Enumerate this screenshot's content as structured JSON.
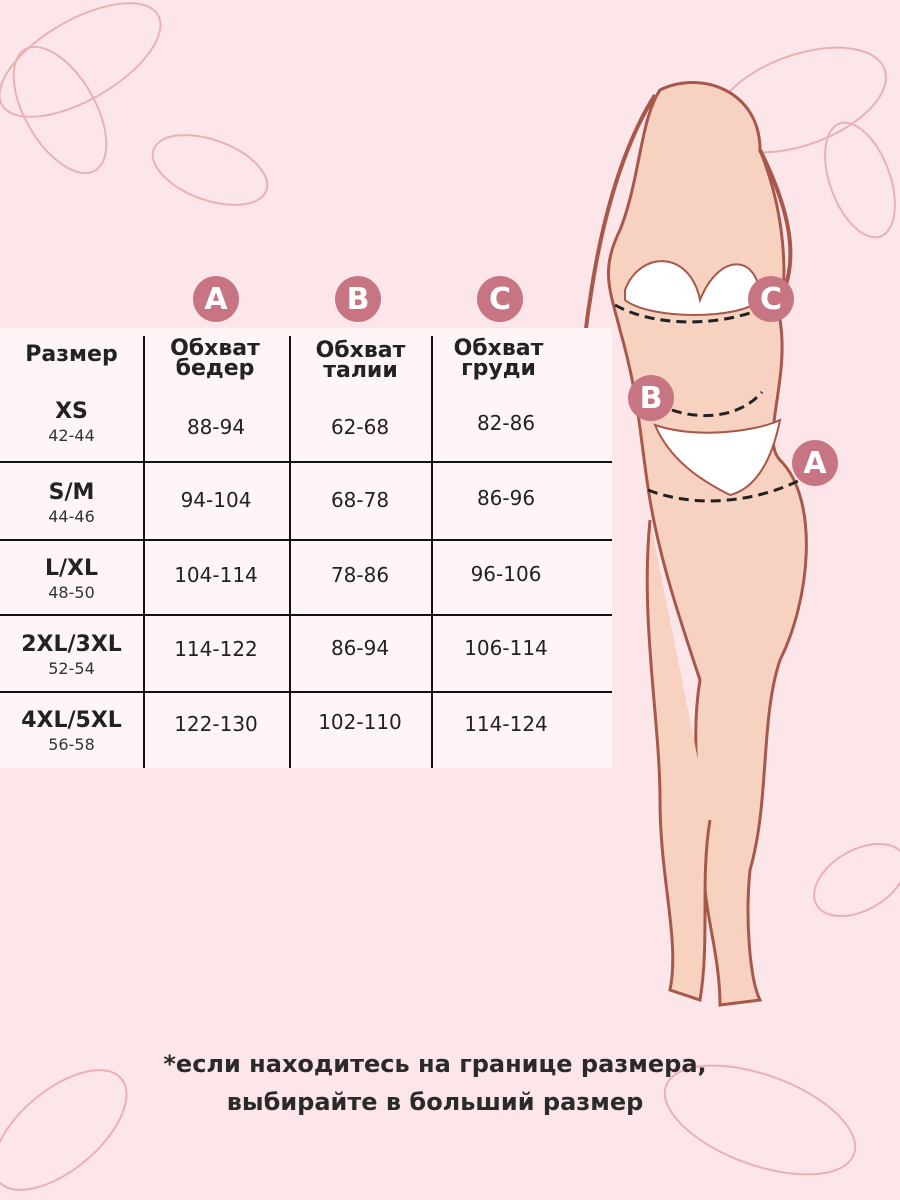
{
  "colors": {
    "background": "#fce6ea",
    "badge": "#c87583",
    "table": "#fff5f7"
  },
  "badges": {
    "a": "A",
    "b": "B",
    "c": "C"
  },
  "headers": {
    "size": "Размер",
    "hips": "Обхват бедер",
    "waist": "Обхват талии",
    "chest": "Обхват груди"
  },
  "rows": [
    {
      "size": "XS",
      "ru": "42-44",
      "hips": "88-94",
      "waist": "62-68",
      "chest": "82-86"
    },
    {
      "size": "S/M",
      "ru": "44-46",
      "hips": "94-104",
      "waist": "68-78",
      "chest": "86-96"
    },
    {
      "size": "L/XL",
      "ru": "48-50",
      "hips": "104-114",
      "waist": "78-86",
      "chest": "96-106"
    },
    {
      "size": "2XL/3XL",
      "ru": "52-54",
      "hips": "114-122",
      "waist": "86-94",
      "chest": "106-114"
    },
    {
      "size": "4XL/5XL",
      "ru": "56-58",
      "hips": "122-130",
      "waist": "102-110",
      "chest": "114-124"
    }
  ],
  "note": {
    "line1": "*если находитесь на границе размера,",
    "line2": "выбирайте в больший размер"
  }
}
